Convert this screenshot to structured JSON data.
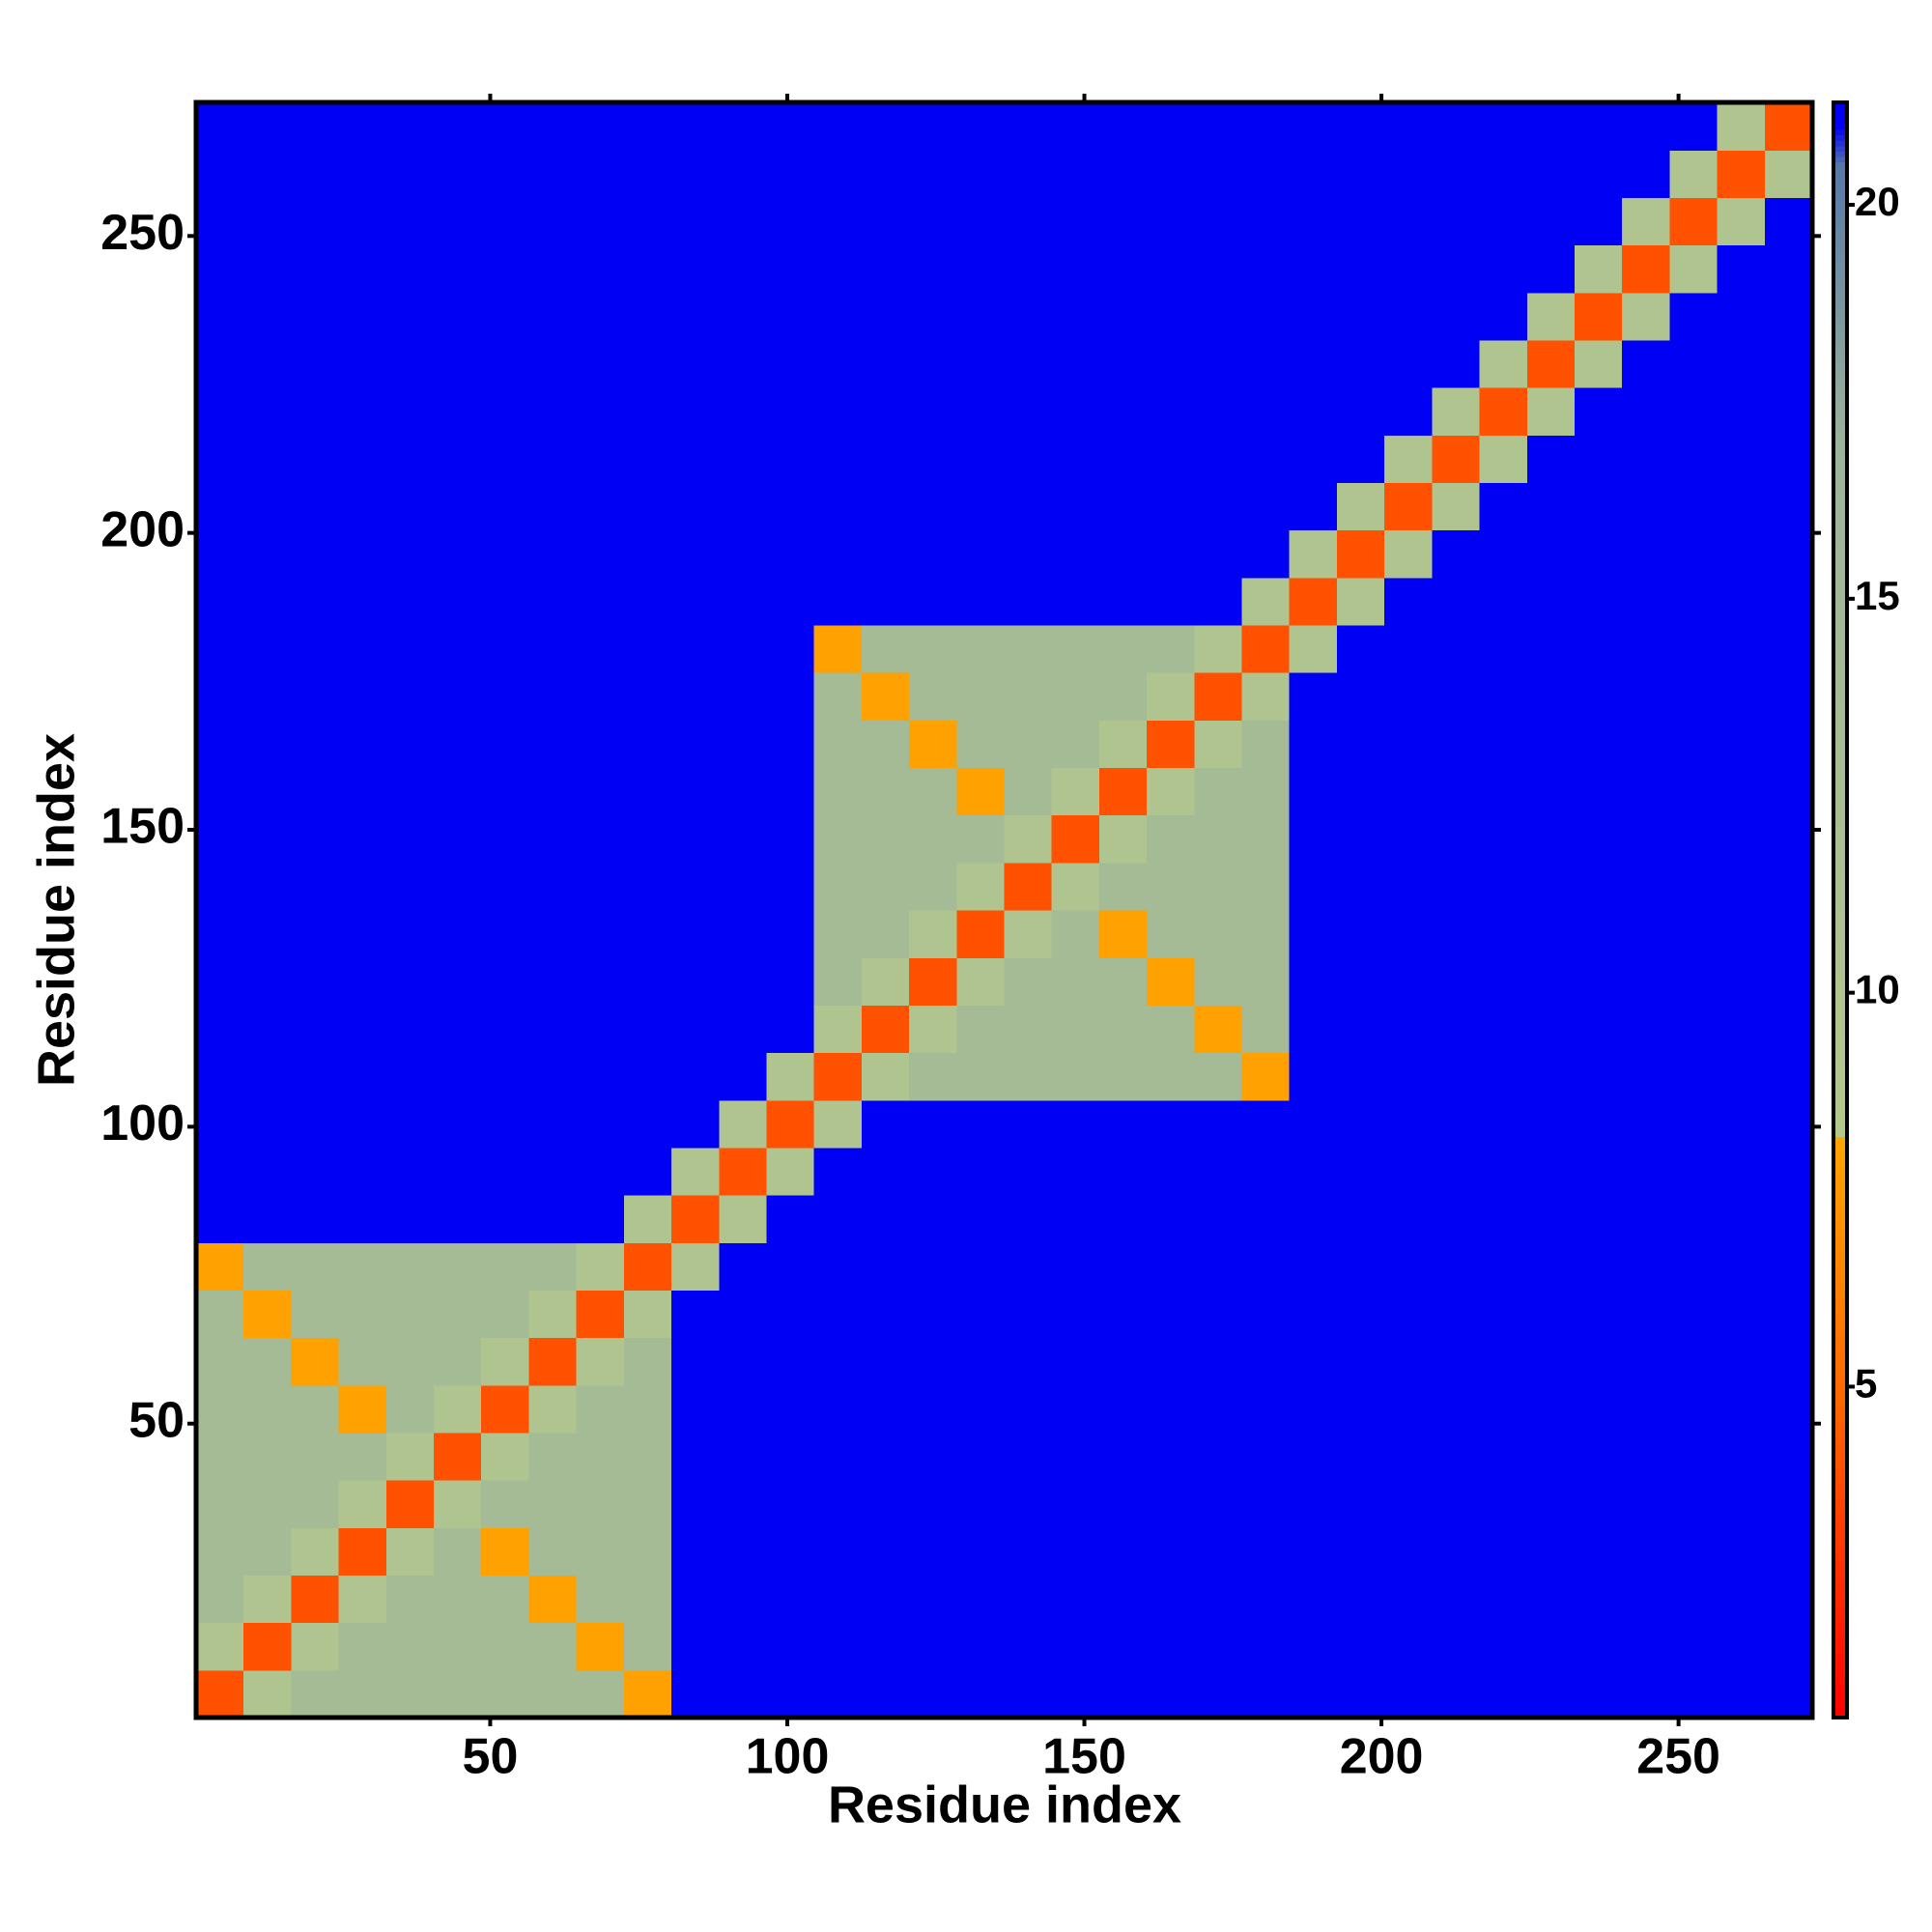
{
  "chart_data": {
    "type": "heatmap",
    "xlabel": "Residue index",
    "ylabel": "Residue index",
    "xlim": [
      0.5,
      272.5
    ],
    "ylim": [
      0.5,
      272.5
    ],
    "xticks": [
      50,
      100,
      150,
      200,
      250
    ],
    "yticks": [
      50,
      100,
      150,
      200,
      250
    ],
    "zlim": [
      0.8,
      21.3
    ],
    "zticks": [
      5,
      10,
      15,
      20
    ],
    "colorscale": [
      [
        0.8,
        "#ff0000"
      ],
      [
        5,
        "#ff6a00"
      ],
      [
        8.2,
        "#ffa500"
      ],
      [
        8.2,
        "#b4c88c"
      ],
      [
        17,
        "#9cb49a"
      ],
      [
        20.5,
        "#5878a8"
      ],
      [
        21,
        "#0000f5"
      ],
      [
        21.3,
        "#0000f5"
      ]
    ],
    "x": [
      4.5,
      12.5,
      20.5,
      28.5,
      36.5,
      44.5,
      52.5,
      60.5,
      68.5,
      76.5,
      84.5,
      92.5,
      100.5,
      108.5,
      116.5,
      124.5,
      132.5,
      140.5,
      148.5,
      156.5,
      164.5,
      172.5,
      180.5,
      188.5,
      196.5,
      204.5,
      212.5,
      220.5,
      228.5,
      236.5,
      244.5,
      252.5,
      260.5,
      268.5
    ],
    "y": [
      4.5,
      12.5,
      20.5,
      28.5,
      36.5,
      44.5,
      52.5,
      60.5,
      68.5,
      76.5,
      84.5,
      92.5,
      100.5,
      108.5,
      116.5,
      124.5,
      132.5,
      140.5,
      148.5,
      156.5,
      164.5,
      172.5,
      180.5,
      188.5,
      196.5,
      204.5,
      212.5,
      220.5,
      228.5,
      236.5,
      244.5,
      252.5,
      260.5,
      268.5
    ],
    "z": [
      [
        4,
        10,
        14,
        14,
        14,
        14,
        14,
        14,
        14,
        8,
        21,
        21,
        21,
        21,
        21,
        21,
        21,
        21,
        21,
        21,
        21,
        21,
        21,
        21,
        21,
        21,
        21,
        21,
        21,
        21,
        21,
        21,
        21,
        21
      ],
      [
        10,
        4,
        10,
        14,
        14,
        14,
        14,
        14,
        8,
        14,
        21,
        21,
        21,
        21,
        21,
        21,
        21,
        21,
        21,
        21,
        21,
        21,
        21,
        21,
        21,
        21,
        21,
        21,
        21,
        21,
        21,
        21,
        21,
        21
      ],
      [
        14,
        10,
        4,
        10,
        14,
        14,
        14,
        8,
        14,
        14,
        21,
        21,
        21,
        21,
        21,
        21,
        21,
        21,
        21,
        21,
        21,
        21,
        21,
        21,
        21,
        21,
        21,
        21,
        21,
        21,
        21,
        21,
        21,
        21
      ],
      [
        14,
        14,
        10,
        4,
        10,
        14,
        8,
        14,
        14,
        14,
        21,
        21,
        21,
        21,
        21,
        21,
        21,
        21,
        21,
        21,
        21,
        21,
        21,
        21,
        21,
        21,
        21,
        21,
        21,
        21,
        21,
        21,
        21,
        21
      ],
      [
        14,
        14,
        14,
        10,
        4,
        10,
        14,
        14,
        14,
        14,
        21,
        21,
        21,
        21,
        21,
        21,
        21,
        21,
        21,
        21,
        21,
        21,
        21,
        21,
        21,
        21,
        21,
        21,
        21,
        21,
        21,
        21,
        21,
        21
      ],
      [
        14,
        14,
        14,
        14,
        10,
        4,
        10,
        14,
        14,
        14,
        21,
        21,
        21,
        21,
        21,
        21,
        21,
        21,
        21,
        21,
        21,
        21,
        21,
        21,
        21,
        21,
        21,
        21,
        21,
        21,
        21,
        21,
        21,
        21
      ],
      [
        14,
        14,
        14,
        8,
        14,
        10,
        4,
        10,
        14,
        14,
        21,
        21,
        21,
        21,
        21,
        21,
        21,
        21,
        21,
        21,
        21,
        21,
        21,
        21,
        21,
        21,
        21,
        21,
        21,
        21,
        21,
        21,
        21,
        21
      ],
      [
        14,
        14,
        8,
        14,
        14,
        14,
        10,
        4,
        10,
        14,
        21,
        21,
        21,
        21,
        21,
        21,
        21,
        21,
        21,
        21,
        21,
        21,
        21,
        21,
        21,
        21,
        21,
        21,
        21,
        21,
        21,
        21,
        21,
        21
      ],
      [
        14,
        8,
        14,
        14,
        14,
        14,
        14,
        10,
        4,
        10,
        21,
        21,
        21,
        21,
        21,
        21,
        21,
        21,
        21,
        21,
        21,
        21,
        21,
        21,
        21,
        21,
        21,
        21,
        21,
        21,
        21,
        21,
        21,
        21
      ],
      [
        8,
        14,
        14,
        14,
        14,
        14,
        14,
        14,
        10,
        4,
        10,
        21,
        21,
        21,
        21,
        21,
        21,
        21,
        21,
        21,
        21,
        21,
        21,
        21,
        21,
        21,
        21,
        21,
        21,
        21,
        21,
        21,
        21,
        21
      ],
      [
        21,
        21,
        21,
        21,
        21,
        21,
        21,
        21,
        21,
        10,
        4,
        10,
        21,
        21,
        21,
        21,
        21,
        21,
        21,
        21,
        21,
        21,
        21,
        21,
        21,
        21,
        21,
        21,
        21,
        21,
        21,
        21,
        21,
        21
      ],
      [
        21,
        21,
        21,
        21,
        21,
        21,
        21,
        21,
        21,
        21,
        10,
        4,
        10,
        21,
        21,
        21,
        21,
        21,
        21,
        21,
        21,
        21,
        21,
        21,
        21,
        21,
        21,
        21,
        21,
        21,
        21,
        21,
        21,
        21
      ],
      [
        21,
        21,
        21,
        21,
        21,
        21,
        21,
        21,
        21,
        21,
        21,
        10,
        4,
        10,
        21,
        21,
        21,
        21,
        21,
        21,
        21,
        21,
        21,
        21,
        21,
        21,
        21,
        21,
        21,
        21,
        21,
        21,
        21,
        21
      ],
      [
        21,
        21,
        21,
        21,
        21,
        21,
        21,
        21,
        21,
        21,
        21,
        21,
        10,
        4,
        10,
        14,
        14,
        14,
        14,
        14,
        14,
        14,
        8,
        21,
        21,
        21,
        21,
        21,
        21,
        21,
        21,
        21,
        21,
        21
      ],
      [
        21,
        21,
        21,
        21,
        21,
        21,
        21,
        21,
        21,
        21,
        21,
        21,
        21,
        10,
        4,
        10,
        14,
        14,
        14,
        14,
        14,
        8,
        14,
        21,
        21,
        21,
        21,
        21,
        21,
        21,
        21,
        21,
        21,
        21
      ],
      [
        21,
        21,
        21,
        21,
        21,
        21,
        21,
        21,
        21,
        21,
        21,
        21,
        21,
        14,
        10,
        4,
        10,
        14,
        14,
        14,
        8,
        14,
        14,
        21,
        21,
        21,
        21,
        21,
        21,
        21,
        21,
        21,
        21,
        21
      ],
      [
        21,
        21,
        21,
        21,
        21,
        21,
        21,
        21,
        21,
        21,
        21,
        21,
        21,
        14,
        14,
        10,
        4,
        10,
        14,
        8,
        14,
        14,
        14,
        21,
        21,
        21,
        21,
        21,
        21,
        21,
        21,
        21,
        21,
        21
      ],
      [
        21,
        21,
        21,
        21,
        21,
        21,
        21,
        21,
        21,
        21,
        21,
        21,
        21,
        14,
        14,
        14,
        10,
        4,
        10,
        14,
        14,
        14,
        14,
        21,
        21,
        21,
        21,
        21,
        21,
        21,
        21,
        21,
        21,
        21
      ],
      [
        21,
        21,
        21,
        21,
        21,
        21,
        21,
        21,
        21,
        21,
        21,
        21,
        21,
        14,
        14,
        14,
        14,
        10,
        4,
        10,
        14,
        14,
        14,
        21,
        21,
        21,
        21,
        21,
        21,
        21,
        21,
        21,
        21,
        21
      ],
      [
        21,
        21,
        21,
        21,
        21,
        21,
        21,
        21,
        21,
        21,
        21,
        21,
        21,
        14,
        14,
        14,
        8,
        14,
        10,
        4,
        10,
        14,
        14,
        21,
        21,
        21,
        21,
        21,
        21,
        21,
        21,
        21,
        21,
        21
      ],
      [
        21,
        21,
        21,
        21,
        21,
        21,
        21,
        21,
        21,
        21,
        21,
        21,
        21,
        14,
        14,
        8,
        14,
        14,
        14,
        10,
        4,
        10,
        14,
        21,
        21,
        21,
        21,
        21,
        21,
        21,
        21,
        21,
        21,
        21
      ],
      [
        21,
        21,
        21,
        21,
        21,
        21,
        21,
        21,
        21,
        21,
        21,
        21,
        21,
        14,
        8,
        14,
        14,
        14,
        14,
        14,
        10,
        4,
        10,
        21,
        21,
        21,
        21,
        21,
        21,
        21,
        21,
        21,
        21,
        21
      ],
      [
        21,
        21,
        21,
        21,
        21,
        21,
        21,
        21,
        21,
        21,
        21,
        21,
        21,
        8,
        14,
        14,
        14,
        14,
        14,
        14,
        14,
        10,
        4,
        10,
        21,
        21,
        21,
        21,
        21,
        21,
        21,
        21,
        21,
        21
      ],
      [
        21,
        21,
        21,
        21,
        21,
        21,
        21,
        21,
        21,
        21,
        21,
        21,
        21,
        21,
        21,
        21,
        21,
        21,
        21,
        21,
        21,
        21,
        10,
        4,
        10,
        21,
        21,
        21,
        21,
        21,
        21,
        21,
        21,
        21
      ],
      [
        21,
        21,
        21,
        21,
        21,
        21,
        21,
        21,
        21,
        21,
        21,
        21,
        21,
        21,
        21,
        21,
        21,
        21,
        21,
        21,
        21,
        21,
        21,
        10,
        4,
        10,
        21,
        21,
        21,
        21,
        21,
        21,
        21,
        21
      ],
      [
        21,
        21,
        21,
        21,
        21,
        21,
        21,
        21,
        21,
        21,
        21,
        21,
        21,
        21,
        21,
        21,
        21,
        21,
        21,
        21,
        21,
        21,
        21,
        21,
        10,
        4,
        10,
        21,
        21,
        21,
        21,
        21,
        21,
        21
      ],
      [
        21,
        21,
        21,
        21,
        21,
        21,
        21,
        21,
        21,
        21,
        21,
        21,
        21,
        21,
        21,
        21,
        21,
        21,
        21,
        21,
        21,
        21,
        21,
        21,
        21,
        10,
        4,
        10,
        21,
        21,
        21,
        21,
        21,
        21
      ],
      [
        21,
        21,
        21,
        21,
        21,
        21,
        21,
        21,
        21,
        21,
        21,
        21,
        21,
        21,
        21,
        21,
        21,
        21,
        21,
        21,
        21,
        21,
        21,
        21,
        21,
        21,
        10,
        4,
        10,
        21,
        21,
        21,
        21,
        21
      ],
      [
        21,
        21,
        21,
        21,
        21,
        21,
        21,
        21,
        21,
        21,
        21,
        21,
        21,
        21,
        21,
        21,
        21,
        21,
        21,
        21,
        21,
        21,
        21,
        21,
        21,
        21,
        21,
        10,
        4,
        10,
        21,
        21,
        21,
        21
      ],
      [
        21,
        21,
        21,
        21,
        21,
        21,
        21,
        21,
        21,
        21,
        21,
        21,
        21,
        21,
        21,
        21,
        21,
        21,
        21,
        21,
        21,
        21,
        21,
        21,
        21,
        21,
        21,
        21,
        10,
        4,
        10,
        21,
        21,
        21
      ],
      [
        21,
        21,
        21,
        21,
        21,
        21,
        21,
        21,
        21,
        21,
        21,
        21,
        21,
        21,
        21,
        21,
        21,
        21,
        21,
        21,
        21,
        21,
        21,
        21,
        21,
        21,
        21,
        21,
        21,
        10,
        4,
        10,
        21,
        21
      ],
      [
        21,
        21,
        21,
        21,
        21,
        21,
        21,
        21,
        21,
        21,
        21,
        21,
        21,
        21,
        21,
        21,
        21,
        21,
        21,
        21,
        21,
        21,
        21,
        21,
        21,
        21,
        21,
        21,
        21,
        21,
        10,
        4,
        10,
        21
      ],
      [
        21,
        21,
        21,
        21,
        21,
        21,
        21,
        21,
        21,
        21,
        21,
        21,
        21,
        21,
        21,
        21,
        21,
        21,
        21,
        21,
        21,
        21,
        21,
        21,
        21,
        21,
        21,
        21,
        21,
        21,
        21,
        10,
        4,
        10
      ],
      [
        21,
        21,
        21,
        21,
        21,
        21,
        21,
        21,
        21,
        21,
        21,
        21,
        21,
        21,
        21,
        21,
        21,
        21,
        21,
        21,
        21,
        21,
        21,
        21,
        21,
        21,
        21,
        21,
        21,
        21,
        21,
        21,
        10,
        4
      ]
    ]
  }
}
